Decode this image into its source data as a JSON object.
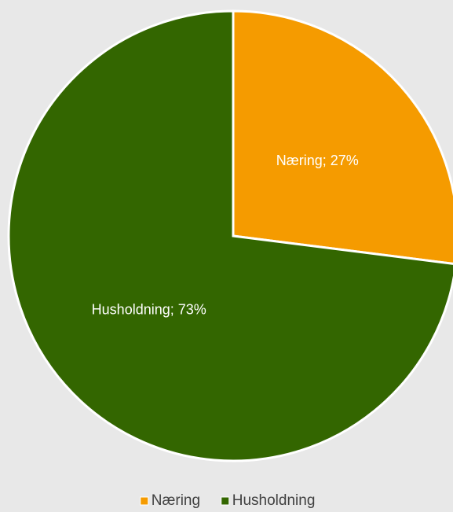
{
  "chart_data": {
    "type": "pie",
    "categories": [
      "Næring",
      "Husholdning"
    ],
    "values": [
      27,
      73
    ],
    "value_labels": [
      "Næring; 27%",
      "Husholdning; 73%"
    ],
    "colors": [
      "#f59b00",
      "#336600"
    ],
    "legend": "bottom"
  }
}
